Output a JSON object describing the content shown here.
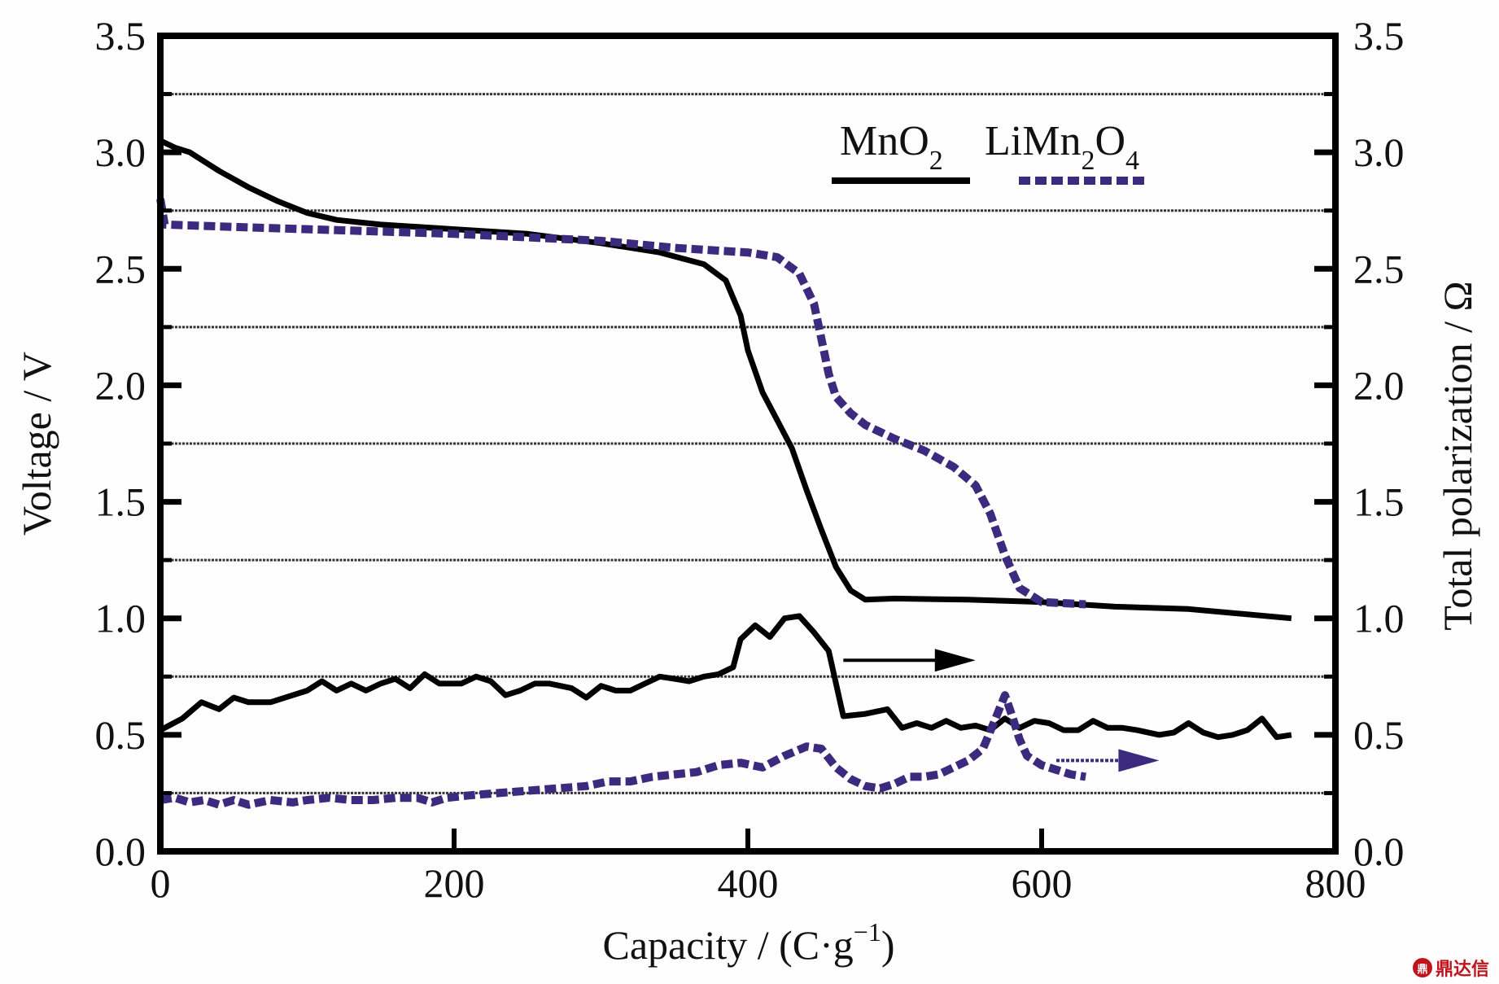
{
  "chart_data": {
    "type": "line",
    "title": "",
    "xlabel": "Capacity / (C·g⁻¹)",
    "xlabel_parts": {
      "main": "Capacity / (C·g",
      "sup": "−1",
      "tail": ")"
    },
    "ylabel": "Voltage / V",
    "y2label": "Total polarization / Ω",
    "xlim": [
      0,
      800
    ],
    "ylim": [
      0.0,
      3.5
    ],
    "y2lim": [
      0.0,
      3.5
    ],
    "xticks": [
      "0",
      "200",
      "400",
      "600",
      "800"
    ],
    "yticks": [
      "0.0",
      "0.5",
      "1.0",
      "1.5",
      "2.0",
      "2.5",
      "3.0",
      "3.5"
    ],
    "y2ticks": [
      "0.0",
      "0.5",
      "1.0",
      "1.5",
      "2.0",
      "2.5",
      "3.0",
      "3.5"
    ],
    "grid": {
      "horizontal": true,
      "style": "dotted",
      "values": [
        0.25,
        0.75,
        1.25,
        1.75,
        2.25,
        2.75,
        3.25
      ]
    },
    "legend": {
      "placement": "top-right",
      "entries": [
        {
          "name": "MnO2",
          "base": "MnO",
          "sub": "2",
          "style": "solid",
          "color": "#000000"
        },
        {
          "name": "LiMn2O4",
          "parts": [
            "LiMn",
            "2",
            "O",
            "4"
          ],
          "style": "dashed",
          "color": "#3b2a7e"
        }
      ]
    },
    "annotations": [
      {
        "type": "arrow",
        "text": "",
        "direction": "right",
        "series": "MnO2 polarization",
        "meaning": "refers to right axis",
        "from": [
          465,
          0.82
        ],
        "to": [
          555,
          0.82
        ],
        "color": "#000000"
      },
      {
        "type": "arrow",
        "text": "",
        "direction": "right",
        "series": "LiMn2O4 polarization",
        "meaning": "refers to right axis",
        "from": [
          610,
          0.39
        ],
        "to": [
          680,
          0.39
        ],
        "color": "#3b2a7e"
      }
    ],
    "series": [
      {
        "name": "MnO2 voltage",
        "axis": "left",
        "style": "solid",
        "color": "#000000",
        "x": [
          0,
          10,
          20,
          40,
          60,
          80,
          100,
          120,
          150,
          200,
          250,
          300,
          340,
          370,
          385,
          395,
          400,
          410,
          420,
          430,
          440,
          450,
          460,
          470,
          480,
          500,
          550,
          600,
          650,
          700,
          770
        ],
        "y": [
          3.05,
          3.02,
          3.0,
          2.92,
          2.85,
          2.79,
          2.74,
          2.71,
          2.69,
          2.67,
          2.65,
          2.61,
          2.57,
          2.52,
          2.45,
          2.3,
          2.15,
          1.97,
          1.85,
          1.73,
          1.55,
          1.38,
          1.22,
          1.12,
          1.08,
          1.085,
          1.08,
          1.07,
          1.05,
          1.04,
          1.0
        ]
      },
      {
        "name": "LiMn2O4 voltage",
        "axis": "left",
        "style": "dashed",
        "color": "#3b2a7e",
        "x": [
          0,
          3,
          50,
          100,
          200,
          300,
          350,
          400,
          420,
          435,
          445,
          450,
          455,
          460,
          470,
          480,
          500,
          520,
          540,
          555,
          565,
          575,
          585,
          600,
          630
        ],
        "y": [
          2.8,
          2.69,
          2.68,
          2.67,
          2.65,
          2.62,
          2.59,
          2.57,
          2.55,
          2.48,
          2.35,
          2.2,
          2.05,
          1.95,
          1.88,
          1.83,
          1.77,
          1.72,
          1.65,
          1.57,
          1.45,
          1.27,
          1.13,
          1.07,
          1.06
        ]
      },
      {
        "name": "MnO2 polarization",
        "axis": "right",
        "style": "solid",
        "color": "#000000",
        "x": [
          0,
          15,
          28,
          40,
          50,
          60,
          75,
          90,
          100,
          110,
          120,
          130,
          140,
          150,
          160,
          170,
          180,
          190,
          205,
          215,
          225,
          235,
          245,
          255,
          265,
          280,
          290,
          300,
          310,
          320,
          330,
          340,
          350,
          360,
          370,
          380,
          390,
          395,
          405,
          415,
          425,
          435,
          445,
          455,
          465,
          480,
          495,
          505,
          515,
          525,
          535,
          545,
          555,
          565,
          575,
          585,
          595,
          605,
          615,
          625,
          635,
          645,
          655,
          665,
          680,
          690,
          700,
          710,
          720,
          730,
          740,
          750,
          760,
          770
        ],
        "y": [
          0.52,
          0.57,
          0.64,
          0.61,
          0.66,
          0.64,
          0.64,
          0.67,
          0.69,
          0.73,
          0.69,
          0.72,
          0.69,
          0.72,
          0.74,
          0.7,
          0.76,
          0.72,
          0.72,
          0.75,
          0.73,
          0.67,
          0.69,
          0.72,
          0.72,
          0.7,
          0.66,
          0.71,
          0.69,
          0.69,
          0.72,
          0.75,
          0.74,
          0.73,
          0.75,
          0.76,
          0.79,
          0.91,
          0.97,
          0.92,
          1.0,
          1.01,
          0.94,
          0.86,
          0.58,
          0.59,
          0.61,
          0.53,
          0.55,
          0.53,
          0.56,
          0.53,
          0.54,
          0.52,
          0.57,
          0.53,
          0.56,
          0.55,
          0.52,
          0.52,
          0.56,
          0.53,
          0.53,
          0.52,
          0.5,
          0.51,
          0.55,
          0.51,
          0.49,
          0.5,
          0.52,
          0.57,
          0.49,
          0.5
        ]
      },
      {
        "name": "LiMn2O4 polarization",
        "axis": "right",
        "style": "dashed",
        "color": "#3b2a7e",
        "x": [
          0,
          10,
          20,
          30,
          40,
          50,
          60,
          75,
          90,
          100,
          115,
          130,
          145,
          160,
          175,
          185,
          195,
          210,
          230,
          250,
          270,
          290,
          305,
          320,
          335,
          350,
          365,
          380,
          395,
          410,
          425,
          440,
          450,
          460,
          470,
          480,
          490,
          500,
          510,
          520,
          530,
          540,
          550,
          560,
          568,
          575,
          580,
          585,
          590,
          600,
          610,
          620,
          630
        ],
        "y": [
          0.22,
          0.23,
          0.21,
          0.22,
          0.2,
          0.22,
          0.2,
          0.22,
          0.21,
          0.22,
          0.23,
          0.22,
          0.22,
          0.23,
          0.23,
          0.21,
          0.23,
          0.24,
          0.25,
          0.26,
          0.27,
          0.28,
          0.3,
          0.3,
          0.32,
          0.33,
          0.34,
          0.37,
          0.38,
          0.36,
          0.41,
          0.45,
          0.44,
          0.36,
          0.31,
          0.28,
          0.27,
          0.29,
          0.32,
          0.32,
          0.33,
          0.36,
          0.39,
          0.44,
          0.56,
          0.67,
          0.58,
          0.48,
          0.41,
          0.37,
          0.35,
          0.33,
          0.32
        ]
      }
    ]
  },
  "watermark": {
    "logo": "鼎",
    "text": "鼎达信"
  }
}
